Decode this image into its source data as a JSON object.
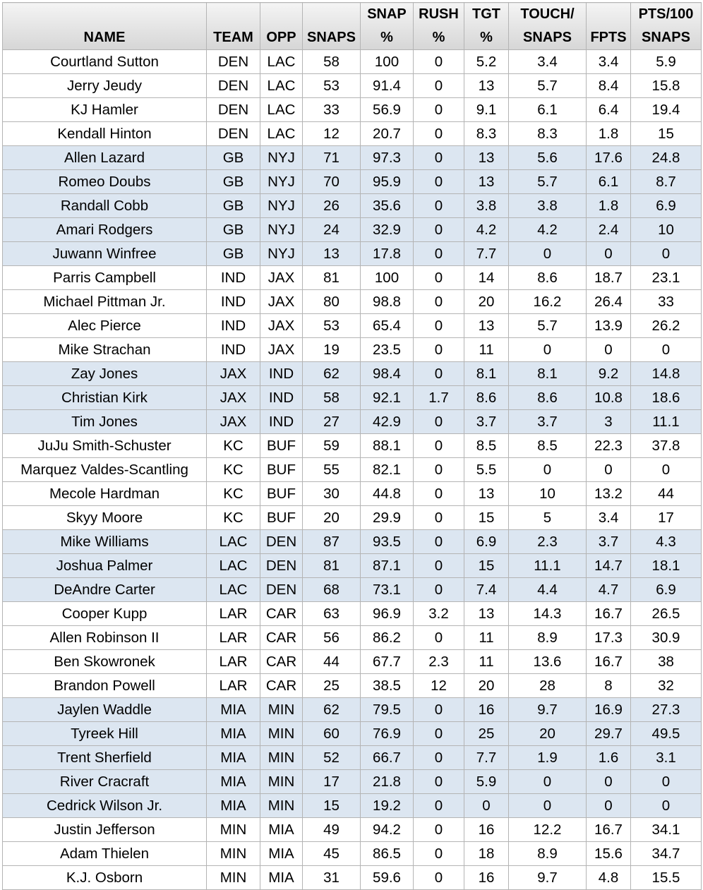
{
  "table": {
    "headers": [
      [
        "NAME"
      ],
      [
        "TEAM"
      ],
      [
        "OPP"
      ],
      [
        "SNAPS"
      ],
      [
        "SNAP",
        "%"
      ],
      [
        "RUSH",
        "%"
      ],
      [
        "TGT",
        "%"
      ],
      [
        "TOUCH/",
        "SNAPS"
      ],
      [
        "FPTS"
      ],
      [
        "PTS/100",
        "SNAPS"
      ]
    ],
    "rows": [
      [
        "Courtland Sutton",
        "DEN",
        "LAC",
        "58",
        "100",
        "0",
        "5.2",
        "3.4",
        "3.4",
        "5.9"
      ],
      [
        "Jerry Jeudy",
        "DEN",
        "LAC",
        "53",
        "91.4",
        "0",
        "13",
        "5.7",
        "8.4",
        "15.8"
      ],
      [
        "KJ Hamler",
        "DEN",
        "LAC",
        "33",
        "56.9",
        "0",
        "9.1",
        "6.1",
        "6.4",
        "19.4"
      ],
      [
        "Kendall Hinton",
        "DEN",
        "LAC",
        "12",
        "20.7",
        "0",
        "8.3",
        "8.3",
        "1.8",
        "15"
      ],
      [
        "Allen Lazard",
        "GB",
        "NYJ",
        "71",
        "97.3",
        "0",
        "13",
        "5.6",
        "17.6",
        "24.8"
      ],
      [
        "Romeo Doubs",
        "GB",
        "NYJ",
        "70",
        "95.9",
        "0",
        "13",
        "5.7",
        "6.1",
        "8.7"
      ],
      [
        "Randall Cobb",
        "GB",
        "NYJ",
        "26",
        "35.6",
        "0",
        "3.8",
        "3.8",
        "1.8",
        "6.9"
      ],
      [
        "Amari Rodgers",
        "GB",
        "NYJ",
        "24",
        "32.9",
        "0",
        "4.2",
        "4.2",
        "2.4",
        "10"
      ],
      [
        "Juwann Winfree",
        "GB",
        "NYJ",
        "13",
        "17.8",
        "0",
        "7.7",
        "0",
        "0",
        "0"
      ],
      [
        "Parris Campbell",
        "IND",
        "JAX",
        "81",
        "100",
        "0",
        "14",
        "8.6",
        "18.7",
        "23.1"
      ],
      [
        "Michael Pittman Jr.",
        "IND",
        "JAX",
        "80",
        "98.8",
        "0",
        "20",
        "16.2",
        "26.4",
        "33"
      ],
      [
        "Alec Pierce",
        "IND",
        "JAX",
        "53",
        "65.4",
        "0",
        "13",
        "5.7",
        "13.9",
        "26.2"
      ],
      [
        "Mike Strachan",
        "IND",
        "JAX",
        "19",
        "23.5",
        "0",
        "11",
        "0",
        "0",
        "0"
      ],
      [
        "Zay Jones",
        "JAX",
        "IND",
        "62",
        "98.4",
        "0",
        "8.1",
        "8.1",
        "9.2",
        "14.8"
      ],
      [
        "Christian Kirk",
        "JAX",
        "IND",
        "58",
        "92.1",
        "1.7",
        "8.6",
        "8.6",
        "10.8",
        "18.6"
      ],
      [
        "Tim Jones",
        "JAX",
        "IND",
        "27",
        "42.9",
        "0",
        "3.7",
        "3.7",
        "3",
        "11.1"
      ],
      [
        "JuJu Smith-Schuster",
        "KC",
        "BUF",
        "59",
        "88.1",
        "0",
        "8.5",
        "8.5",
        "22.3",
        "37.8"
      ],
      [
        "Marquez Valdes-Scantling",
        "KC",
        "BUF",
        "55",
        "82.1",
        "0",
        "5.5",
        "0",
        "0",
        "0"
      ],
      [
        "Mecole Hardman",
        "KC",
        "BUF",
        "30",
        "44.8",
        "0",
        "13",
        "10",
        "13.2",
        "44"
      ],
      [
        "Skyy Moore",
        "KC",
        "BUF",
        "20",
        "29.9",
        "0",
        "15",
        "5",
        "3.4",
        "17"
      ],
      [
        "Mike Williams",
        "LAC",
        "DEN",
        "87",
        "93.5",
        "0",
        "6.9",
        "2.3",
        "3.7",
        "4.3"
      ],
      [
        "Joshua Palmer",
        "LAC",
        "DEN",
        "81",
        "87.1",
        "0",
        "15",
        "11.1",
        "14.7",
        "18.1"
      ],
      [
        "DeAndre Carter",
        "LAC",
        "DEN",
        "68",
        "73.1",
        "0",
        "7.4",
        "4.4",
        "4.7",
        "6.9"
      ],
      [
        "Cooper Kupp",
        "LAR",
        "CAR",
        "63",
        "96.9",
        "3.2",
        "13",
        "14.3",
        "16.7",
        "26.5"
      ],
      [
        "Allen Robinson II",
        "LAR",
        "CAR",
        "56",
        "86.2",
        "0",
        "11",
        "8.9",
        "17.3",
        "30.9"
      ],
      [
        "Ben Skowronek",
        "LAR",
        "CAR",
        "44",
        "67.7",
        "2.3",
        "11",
        "13.6",
        "16.7",
        "38"
      ],
      [
        "Brandon Powell",
        "LAR",
        "CAR",
        "25",
        "38.5",
        "12",
        "20",
        "28",
        "8",
        "32"
      ],
      [
        "Jaylen Waddle",
        "MIA",
        "MIN",
        "62",
        "79.5",
        "0",
        "16",
        "9.7",
        "16.9",
        "27.3"
      ],
      [
        "Tyreek Hill",
        "MIA",
        "MIN",
        "60",
        "76.9",
        "0",
        "25",
        "20",
        "29.7",
        "49.5"
      ],
      [
        "Trent Sherfield",
        "MIA",
        "MIN",
        "52",
        "66.7",
        "0",
        "7.7",
        "1.9",
        "1.6",
        "3.1"
      ],
      [
        "River Cracraft",
        "MIA",
        "MIN",
        "17",
        "21.8",
        "0",
        "5.9",
        "0",
        "0",
        "0"
      ],
      [
        "Cedrick Wilson Jr.",
        "MIA",
        "MIN",
        "15",
        "19.2",
        "0",
        "0",
        "0",
        "0",
        "0"
      ],
      [
        "Justin Jefferson",
        "MIN",
        "MIA",
        "49",
        "94.2",
        "0",
        "16",
        "12.2",
        "16.7",
        "34.1"
      ],
      [
        "Adam Thielen",
        "MIN",
        "MIA",
        "45",
        "86.5",
        "0",
        "18",
        "8.9",
        "15.6",
        "34.7"
      ],
      [
        "K.J. Osborn",
        "MIN",
        "MIA",
        "31",
        "59.6",
        "0",
        "16",
        "9.7",
        "4.8",
        "15.5"
      ]
    ]
  }
}
